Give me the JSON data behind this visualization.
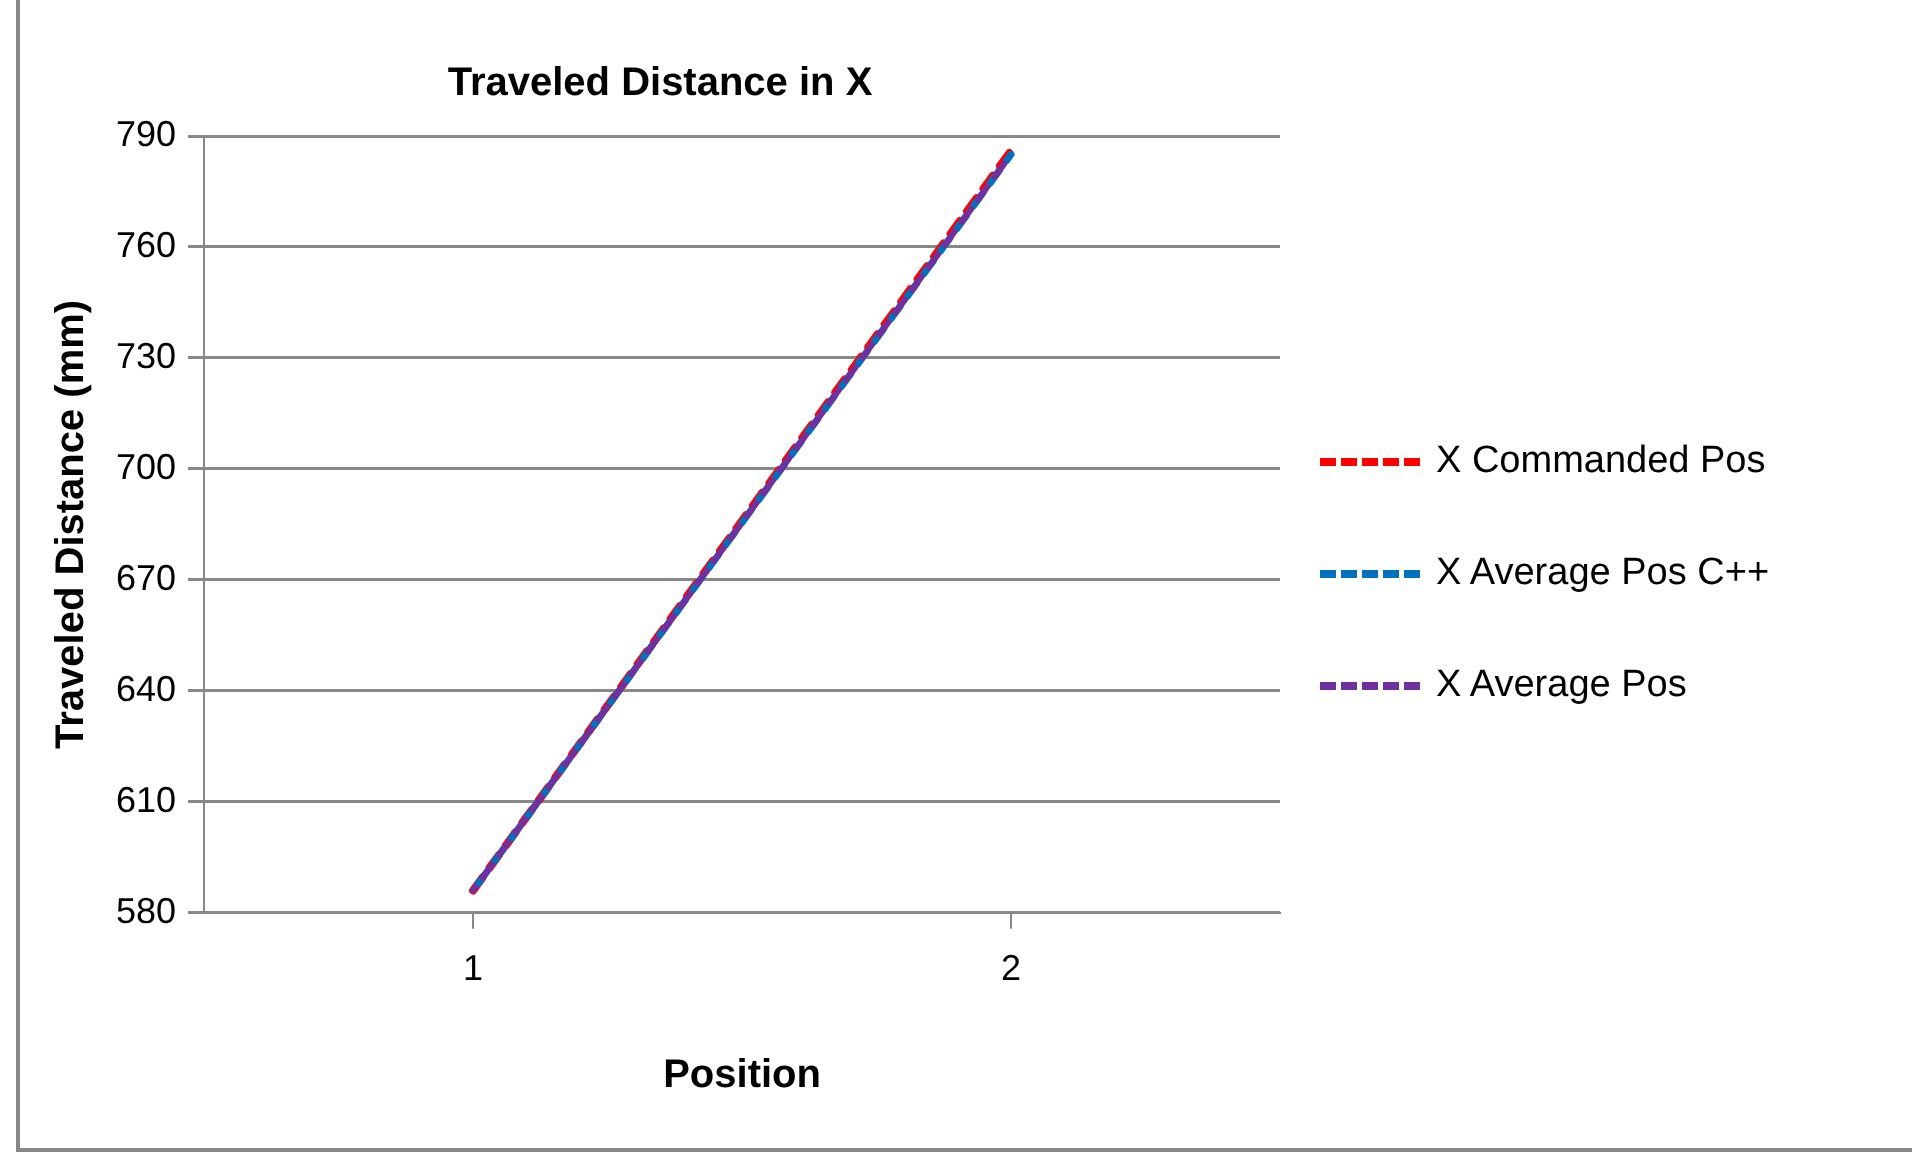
{
  "chart_data": {
    "type": "line",
    "title": "Traveled Distance in X",
    "xlabel": "Position",
    "ylabel": "Traveled Distance (mm)",
    "categories": [
      "1",
      "2"
    ],
    "series": [
      {
        "name": "X Commanded Pos",
        "color": "#ff0000",
        "values": [
          586,
          786
        ],
        "line_style": "dashed"
      },
      {
        "name": "X Average Pos C++",
        "color": "#0070c0",
        "values": [
          586,
          785
        ],
        "line_style": "dashed"
      },
      {
        "name": "X Average Pos",
        "color": "#7030a0",
        "values": [
          586,
          785
        ],
        "line_style": "dashed"
      }
    ],
    "ylim": [
      580,
      790
    ],
    "yticks": [
      580,
      610,
      640,
      670,
      700,
      730,
      760,
      790
    ],
    "grid": "y",
    "legend": "right",
    "marker": "none"
  }
}
